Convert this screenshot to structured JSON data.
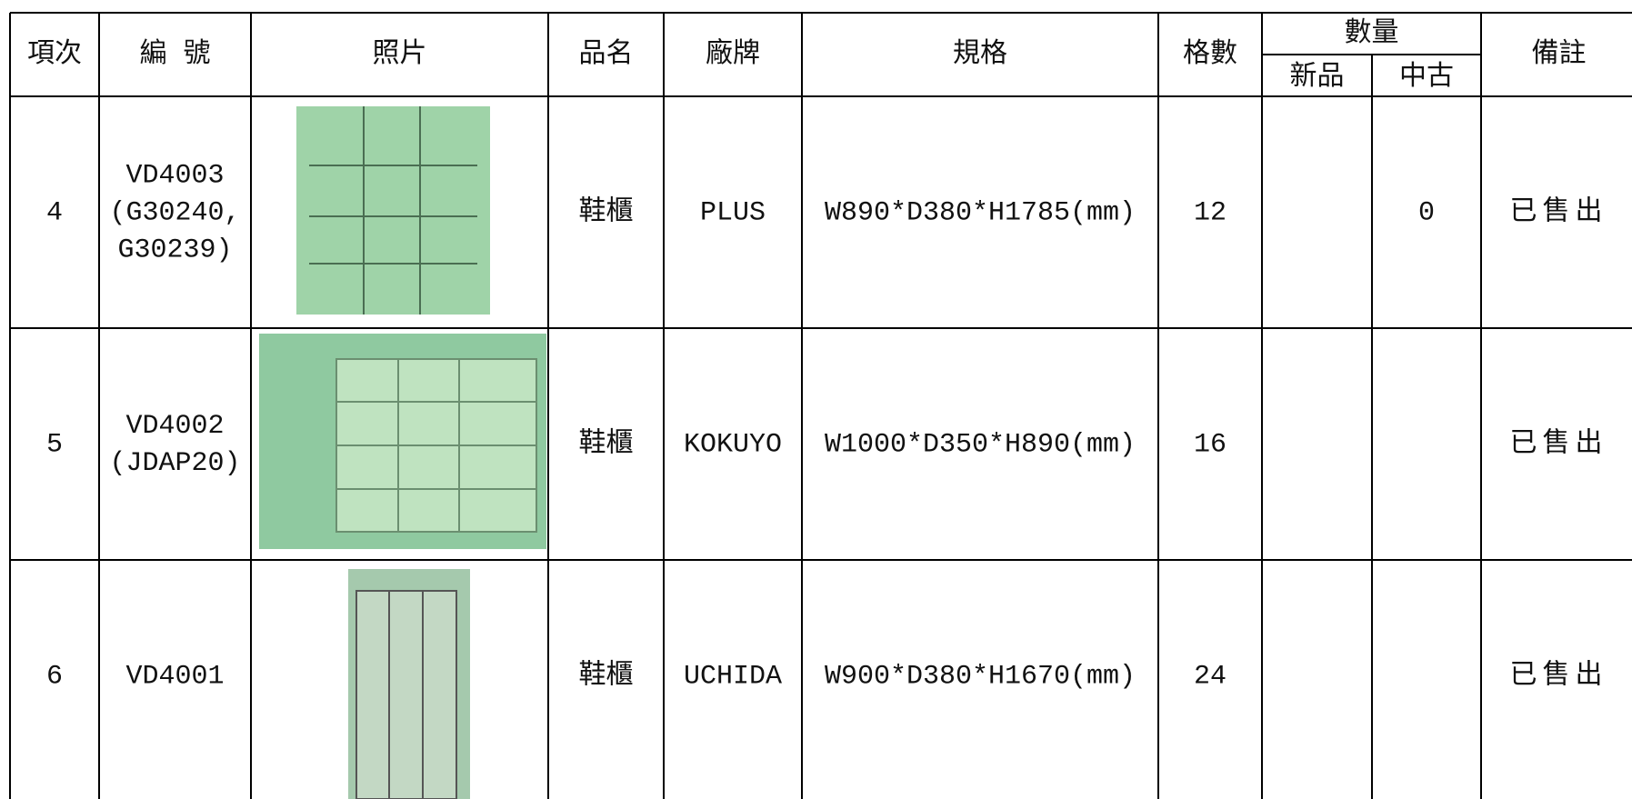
{
  "header": {
    "item": "項次",
    "code": "編 號",
    "photo": "照片",
    "name": "品名",
    "brand": "廠牌",
    "spec": "規格",
    "cells": "格數",
    "quantity": "數量",
    "new": "新品",
    "used": "中古",
    "remarks": "備註"
  },
  "rows": [
    {
      "item": "4",
      "code": [
        "VD4003",
        "(G30240,",
        "G30239)"
      ],
      "name": "鞋櫃",
      "brand": "PLUS",
      "spec": "W890*D380*H1785(mm)",
      "cells": "12",
      "used": "0",
      "remarks": "已售出"
    },
    {
      "item": "5",
      "code": [
        "VD4002",
        "(JDAP20)"
      ],
      "name": "鞋櫃",
      "brand": "KOKUYO",
      "spec": "W1000*D350*H890(mm)",
      "cells": "16",
      "remarks": "已售出"
    },
    {
      "item": "6",
      "code": [
        "VD4001"
      ],
      "name": "鞋櫃",
      "brand": "UCHIDA",
      "spec": "W900*D380*H1670(mm)",
      "cells": "24",
      "remarks": "已售出"
    }
  ]
}
